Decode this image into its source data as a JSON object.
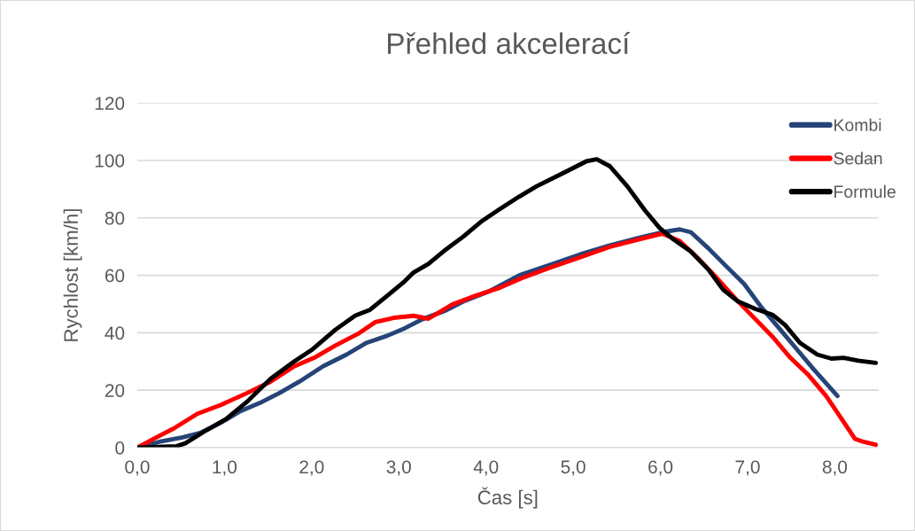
{
  "chart_data": {
    "type": "line",
    "title": "Přehled akcelerací",
    "xlabel": "Čas [s]",
    "ylabel": "Rychlost [km/h]",
    "xlim": [
      0,
      8.5
    ],
    "xticks": [
      {
        "value": 0,
        "label": "0,0"
      },
      {
        "value": 1,
        "label": "1,0"
      },
      {
        "value": 2,
        "label": "2,0"
      },
      {
        "value": 3,
        "label": "3,0"
      },
      {
        "value": 4,
        "label": "4,0"
      },
      {
        "value": 5,
        "label": "5,0"
      },
      {
        "value": 6,
        "label": "6,0"
      },
      {
        "value": 7,
        "label": "7,0"
      },
      {
        "value": 8,
        "label": "8,0"
      }
    ],
    "ylim": [
      0,
      120
    ],
    "yticks": [
      0,
      20,
      40,
      60,
      80,
      100,
      120
    ],
    "grid": "y",
    "legend": "top right",
    "marker": "none",
    "line_style": "solid",
    "series": [
      {
        "name": "Kombi",
        "color": "#264478",
        "x": [
          0,
          0.25,
          0.52,
          0.72,
          0.96,
          1.19,
          1.43,
          1.63,
          1.86,
          2.13,
          2.4,
          2.63,
          2.87,
          3.07,
          3.27,
          3.54,
          3.74,
          4.04,
          4.38,
          4.74,
          5.08,
          5.42,
          5.75,
          6.02,
          6.22,
          6.35,
          6.55,
          6.76,
          6.96,
          7.16,
          7.36,
          7.56,
          7.76,
          8.03
        ],
        "values": [
          0,
          2,
          3.6,
          5.1,
          8.7,
          12.8,
          15.9,
          19,
          23,
          28.3,
          32.4,
          36.5,
          39,
          41.6,
          44.7,
          47.8,
          50.9,
          54.5,
          60,
          63.7,
          67.3,
          70.4,
          73,
          75,
          76,
          75,
          69.4,
          63,
          57,
          48.8,
          41.6,
          34.4,
          27.2,
          18
        ]
      },
      {
        "name": "Sedan",
        "color": "#ff0000",
        "x": [
          0,
          0.22,
          0.42,
          0.69,
          0.96,
          1.26,
          1.53,
          1.8,
          2.03,
          2.27,
          2.53,
          2.73,
          2.94,
          3.17,
          3.34,
          3.61,
          3.88,
          4.14,
          4.41,
          4.74,
          5.08,
          5.42,
          5.75,
          6.02,
          6.22,
          6.42,
          6.62,
          6.86,
          7.09,
          7.29,
          7.49,
          7.7,
          7.9,
          8.06,
          8.23,
          8.33,
          8.47
        ],
        "values": [
          0,
          3.6,
          6.7,
          11.8,
          14.9,
          19,
          23,
          28.3,
          31.3,
          35.5,
          39.6,
          43.7,
          45.2,
          45.9,
          44.9,
          49.8,
          52.9,
          55.5,
          59,
          62.7,
          66.3,
          69.9,
          72.5,
          74.5,
          72,
          66.3,
          60,
          51.9,
          44.7,
          38.5,
          31.3,
          25.2,
          18,
          10.8,
          3.1,
          2,
          1
        ]
      },
      {
        "name": "Formule",
        "color": "#000000",
        "x": [
          0,
          0.45,
          0.55,
          0.79,
          1.02,
          1.26,
          1.53,
          1.8,
          2.0,
          2.27,
          2.5,
          2.67,
          2.87,
          3.07,
          3.17,
          3.34,
          3.54,
          3.74,
          3.94,
          4.14,
          4.38,
          4.58,
          4.91,
          5.15,
          5.27,
          5.42,
          5.62,
          5.82,
          5.99,
          6.15,
          6.35,
          6.55,
          6.72,
          6.89,
          7.09,
          7.29,
          7.43,
          7.6,
          7.8,
          7.96,
          8.1,
          8.27,
          8.47
        ],
        "values": [
          0,
          0.5,
          1.5,
          6,
          10,
          16,
          24,
          30,
          34,
          41,
          46,
          48,
          53,
          58,
          61,
          64,
          69,
          73.5,
          78.6,
          82.7,
          87.4,
          91,
          96,
          99.7,
          100.4,
          98,
          91,
          82.7,
          76.5,
          72.5,
          68.3,
          62,
          55,
          50.9,
          48.3,
          46.2,
          42.7,
          36.5,
          32.4,
          31,
          31.3,
          30.3,
          29.5
        ]
      }
    ]
  }
}
